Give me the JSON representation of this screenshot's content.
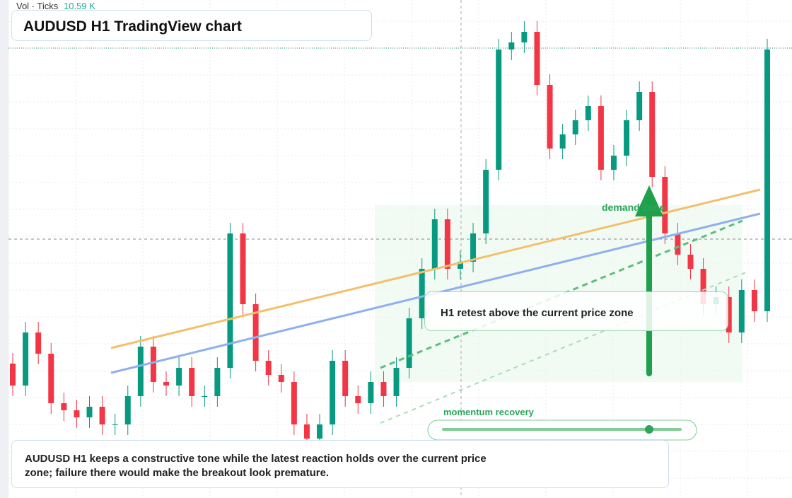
{
  "header": {
    "vol_label": "Vol · Ticks",
    "vol_value": "10.59 K"
  },
  "chart_data": {
    "type": "candlestick",
    "title": "AUDUSD H1 TradingView chart",
    "up_color": "#089981",
    "down_color": "#f23645",
    "ylim": [
      0,
      704
    ],
    "open": [
      190,
      159,
      234,
      204,
      134,
      124,
      114,
      129,
      104,
      104,
      144,
      214,
      164,
      159,
      184,
      144,
      144,
      184,
      374,
      274,
      194,
      174,
      164,
      104,
      84,
      104,
      194,
      144,
      134,
      164,
      144,
      184,
      254,
      324,
      394,
      324,
      334,
      374,
      464,
      634,
      644,
      659,
      584,
      494,
      514,
      534,
      554,
      464,
      484,
      534,
      574,
      454,
      374,
      344,
      324,
      274,
      284,
      234,
      294,
      264
    ],
    "high": [
      205,
      249,
      249,
      219,
      149,
      139,
      144,
      144,
      119,
      159,
      229,
      229,
      179,
      199,
      199,
      159,
      199,
      389,
      389,
      289,
      209,
      189,
      179,
      119,
      119,
      209,
      209,
      159,
      179,
      179,
      199,
      269,
      339,
      409,
      409,
      349,
      389,
      479,
      649,
      659,
      674,
      674,
      599,
      529,
      549,
      569,
      569,
      499,
      549,
      589,
      589,
      469,
      389,
      359,
      339,
      299,
      299,
      309,
      309,
      649
    ],
    "low": [
      144,
      144,
      189,
      119,
      109,
      99,
      99,
      89,
      89,
      89,
      129,
      149,
      144,
      144,
      129,
      129,
      129,
      169,
      259,
      179,
      159,
      149,
      89,
      69,
      69,
      89,
      129,
      119,
      119,
      129,
      129,
      169,
      239,
      309,
      309,
      309,
      319,
      359,
      449,
      619,
      629,
      569,
      479,
      479,
      499,
      519,
      449,
      449,
      469,
      519,
      439,
      359,
      329,
      309,
      259,
      259,
      219,
      219,
      249,
      249
    ],
    "close": [
      159,
      234,
      204,
      134,
      124,
      114,
      129,
      104,
      104,
      144,
      214,
      164,
      159,
      184,
      144,
      144,
      184,
      374,
      274,
      194,
      174,
      164,
      104,
      84,
      104,
      194,
      144,
      134,
      164,
      144,
      184,
      254,
      324,
      394,
      324,
      334,
      374,
      464,
      634,
      644,
      659,
      584,
      494,
      514,
      534,
      554,
      464,
      484,
      534,
      574,
      454,
      374,
      344,
      324,
      274,
      284,
      234,
      294,
      264,
      634
    ],
    "annotations": {
      "zone": "demand zone",
      "retest": "H1 retest above the current price zone",
      "momentum": "momentum recovery",
      "note": "AUDUSD H1 keeps a constructive tone while the latest reaction holds over the current price zone; failure there would make the breakout look premature."
    }
  }
}
